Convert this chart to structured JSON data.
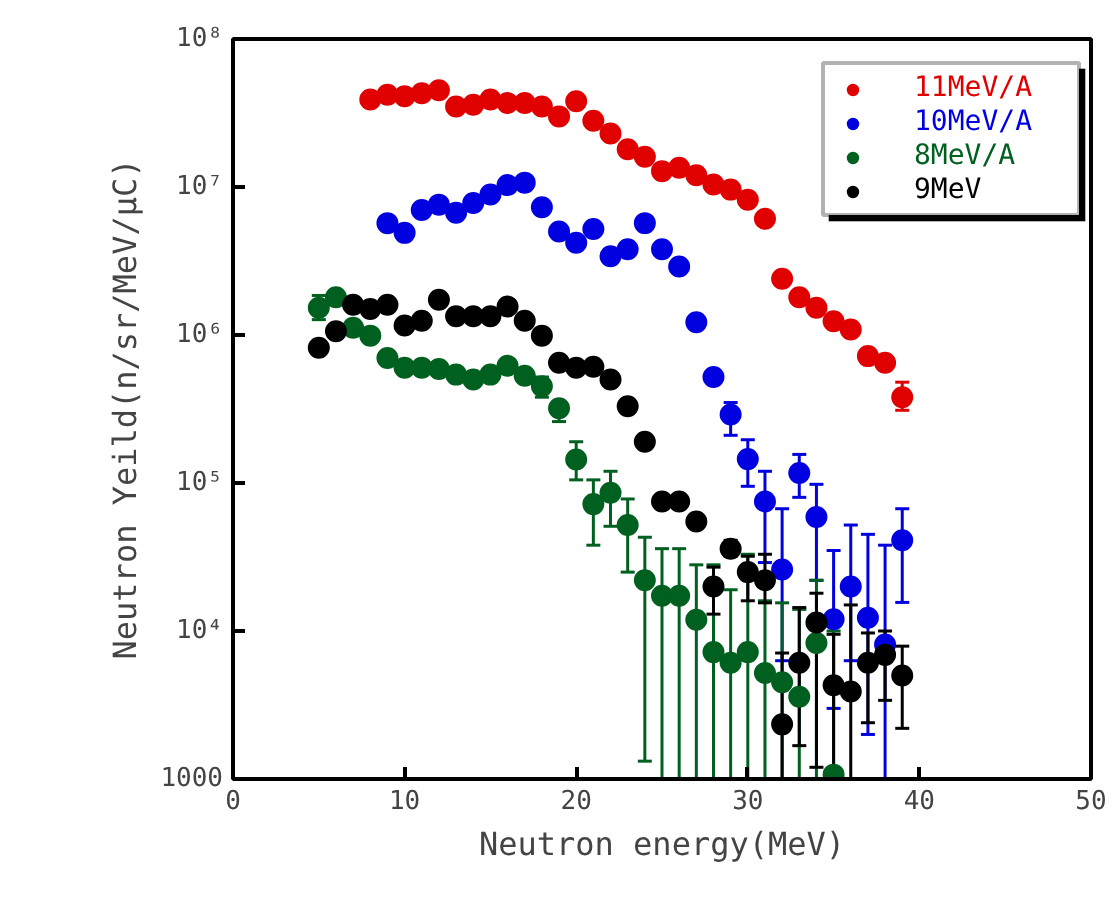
{
  "chart_data": {
    "type": "scatter",
    "xlabel": "Neutron energy(MeV)",
    "ylabel": "Neutron Yeild(n/sr/MeV/μC)",
    "log": "y",
    "marker": "circle",
    "legend": "top right",
    "grid": false,
    "xlim": [
      0,
      50
    ],
    "xticks": [
      0,
      10,
      20,
      30,
      40,
      50
    ],
    "ylim": [
      1000,
      100000000
    ],
    "yticks": [
      1000,
      {
        "value": 10000,
        "label": "10⁴"
      },
      {
        "value": 100000,
        "label": "10⁵"
      },
      {
        "value": 1000000,
        "label": "10⁶"
      },
      {
        "value": 10000000,
        "label": "10⁷"
      },
      {
        "value": 100000000,
        "label": "10⁸"
      }
    ],
    "series": [
      {
        "name": "11MeV/A",
        "color": "#e00000",
        "x": [
          8,
          9,
          10,
          11,
          12,
          13,
          14,
          15,
          16,
          17,
          18,
          19,
          20,
          21,
          22,
          23,
          24,
          25,
          26,
          27,
          28,
          29,
          30,
          31,
          32,
          33,
          34,
          35,
          36,
          37,
          38,
          39
        ],
        "values": [
          39000000.0,
          42000000.0,
          41000000.0,
          43000000.0,
          45000000.0,
          35000000.0,
          36000000.0,
          39000000.0,
          37000000.0,
          37000000.0,
          35000000.0,
          30000000.0,
          38000000.0,
          28000000.0,
          23000000.0,
          18000000.0,
          16000000.0,
          12800000.0,
          13500000.0,
          12000000.0,
          10400000.0,
          9600000.0,
          8200000.0,
          6100000.0,
          2400000.0,
          1800000.0,
          1530000.0,
          1240000.0,
          1090000.0,
          720000.0,
          650000.0,
          380000.0
        ],
        "errors": [
          null,
          null,
          null,
          null,
          null,
          null,
          null,
          null,
          null,
          null,
          null,
          null,
          null,
          null,
          null,
          null,
          null,
          null,
          null,
          null,
          null,
          null,
          null,
          null,
          null,
          null,
          null,
          null,
          null,
          null,
          null,
          [
            310000.0,
            480000.0
          ]
        ]
      },
      {
        "name": "10MeV/A",
        "color": "#0000e0",
        "x": [
          9,
          10,
          11,
          12,
          13,
          14,
          15,
          16,
          17,
          18,
          19,
          20,
          21,
          22,
          23,
          24,
          25,
          26,
          27,
          28,
          29,
          30,
          31,
          32,
          33,
          34,
          35,
          36,
          37,
          38,
          39
        ],
        "values": [
          5700000.0,
          4900000.0,
          7000000.0,
          7600000.0,
          6700000.0,
          7800000.0,
          8900000.0,
          10300000.0,
          10700000.0,
          7300000.0,
          5000000.0,
          4200000.0,
          5200000.0,
          3400000.0,
          3800000.0,
          5700000.0,
          3800000.0,
          2900000.0,
          1220000.0,
          520000.0,
          290000.0,
          145000.0,
          75000.0,
          26000.0,
          117000.0,
          59000.0,
          12000.0,
          20000.0,
          12300.0,
          8100.0,
          41000.0
        ],
        "errors": [
          null,
          null,
          null,
          null,
          null,
          null,
          null,
          null,
          null,
          null,
          null,
          null,
          null,
          null,
          null,
          null,
          null,
          null,
          null,
          null,
          [
            210000.0,
            350000.0
          ],
          [
            95000.0,
            196000.0
          ],
          [
            29000.0,
            120000.0
          ],
          [
            6300.0,
            67000.0
          ],
          [
            80000.0,
            156000.0
          ],
          [
            22000.0,
            98000.0
          ],
          [
            3000,
            35000.0
          ],
          [
            6300.0,
            52000.0
          ],
          [
            2000,
            45000.0
          ],
          [
            1000,
            38000.0
          ],
          [
            15600.0,
            67000.0
          ]
        ]
      },
      {
        "name": "8MeV/A",
        "color": "#006020",
        "x": [
          5,
          6,
          7,
          8,
          9,
          10,
          11,
          12,
          13,
          14,
          15,
          16,
          17,
          18,
          19,
          20,
          21,
          22,
          23,
          24,
          25,
          26,
          27,
          28,
          29,
          30,
          31,
          32,
          33,
          34,
          35
        ],
        "values": [
          1530000.0,
          1800000.0,
          1120000.0,
          990000.0,
          700000.0,
          600000.0,
          600000.0,
          590000.0,
          540000.0,
          500000.0,
          540000.0,
          620000.0,
          530000.0,
          450000.0,
          320000.0,
          144000.0,
          72000.0,
          86000.0,
          52000.0,
          22000.0,
          17300.0,
          17300.0,
          11900.0,
          7200.0,
          6100.0,
          7200.0,
          5200.0,
          4500.0,
          3600.0,
          8300.0,
          1070
        ],
        "errors": [
          [
            1270000.0,
            1850000.0
          ],
          null,
          null,
          null,
          null,
          null,
          null,
          null,
          null,
          null,
          null,
          null,
          null,
          [
            380000.0,
            520000.0
          ],
          [
            260000.0,
            340000.0
          ],
          [
            105000.0,
            190000.0
          ],
          [
            38000.0,
            105000.0
          ],
          [
            51000.0,
            120000.0
          ],
          [
            25000.0,
            78000.0
          ],
          [
            1320,
            43000.0
          ],
          [
            1000,
            36000.0
          ],
          [
            1000,
            36000.0
          ],
          [
            1000,
            28000.0
          ],
          [
            1000,
            28000.0
          ],
          [
            1000,
            19000.0
          ],
          [
            1000,
            33000.0
          ],
          [
            1000,
            16000.0
          ],
          [
            1000,
            15500.0
          ],
          [
            1000,
            14000.0
          ],
          [
            1000,
            22000.0
          ],
          [
            1000,
            10000.0
          ]
        ]
      },
      {
        "name": "9MeV",
        "color": "#000000",
        "x": [
          5,
          6,
          7,
          8,
          9,
          10,
          11,
          12,
          13,
          14,
          15,
          16,
          17,
          18,
          19,
          20,
          21,
          22,
          23,
          24,
          25,
          26,
          27,
          28,
          29,
          30,
          31,
          32,
          33,
          34,
          35,
          36,
          37,
          38,
          39
        ],
        "values": [
          820000.0,
          1060000.0,
          1600000.0,
          1500000.0,
          1600000.0,
          1160000.0,
          1250000.0,
          1730000.0,
          1340000.0,
          1340000.0,
          1340000.0,
          1560000.0,
          1250000.0,
          990000.0,
          650000.0,
          600000.0,
          610000.0,
          500000.0,
          330000.0,
          190000.0,
          75000.0,
          75000.0,
          55000.0,
          20000.0,
          36000.0,
          25000.0,
          22000.0,
          2340,
          6100.0,
          11400.0,
          4300.0,
          3900.0,
          6100.0,
          6900.0,
          5000.0
        ],
        "errors": [
          null,
          null,
          null,
          null,
          null,
          null,
          null,
          null,
          null,
          null,
          null,
          null,
          null,
          null,
          null,
          null,
          null,
          null,
          null,
          null,
          null,
          null,
          null,
          [
            13000.0,
            27000.0
          ],
          [
            32000.0,
            41000.0
          ],
          [
            16000.0,
            32000.0
          ],
          [
            15500.0,
            33000.0
          ],
          [
            1000,
            7100.0
          ],
          [
            1680,
            14400.0
          ],
          [
            1200,
            18000.0
          ],
          [
            1100,
            9500.0
          ],
          [
            1000,
            15000.0
          ],
          [
            2400,
            9700.0
          ],
          [
            3400,
            10000.0
          ],
          [
            2200,
            7900.0
          ]
        ]
      }
    ]
  }
}
